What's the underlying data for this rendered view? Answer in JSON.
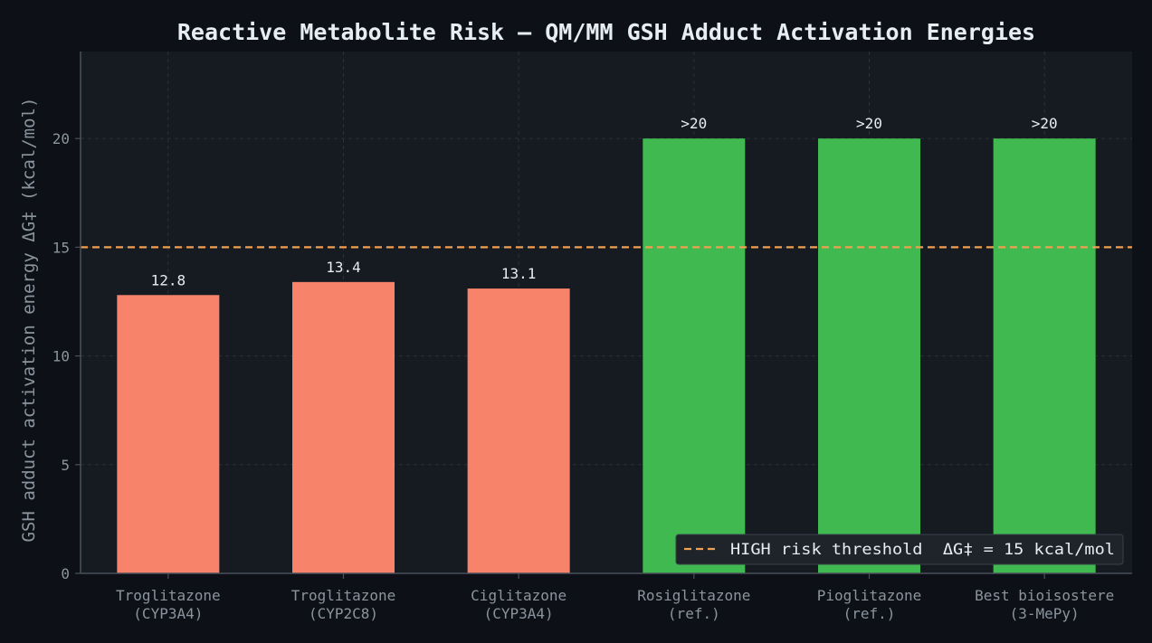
{
  "chart_data": {
    "type": "bar",
    "title": "Reactive Metabolite Risk — QM/MM GSH Adduct Activation Energies",
    "ylabel": "GSH adduct activation energy  ΔG‡ (kcal/mol)",
    "xlabel": "",
    "ylim": [
      0,
      24
    ],
    "yticks": [
      0,
      5,
      10,
      15,
      20
    ],
    "grid": true,
    "categories": [
      [
        "Troglitazone",
        "(CYP3A4)"
      ],
      [
        "Troglitazone",
        "(CYP2C8)"
      ],
      [
        "Ciglitazone",
        "(CYP3A4)"
      ],
      [
        "Rosiglitazone",
        "(ref.)"
      ],
      [
        "Pioglitazone",
        "(ref.)"
      ],
      [
        "Best bioisostere",
        "(3-MePy)"
      ]
    ],
    "values": [
      12.8,
      13.4,
      13.1,
      20,
      20,
      20
    ],
    "value_labels": [
      "12.8",
      "13.4",
      "13.1",
      ">20",
      ">20",
      ">20"
    ],
    "bar_colors": [
      "#f6836a",
      "#f6836a",
      "#f6836a",
      "#3fb950",
      "#3fb950",
      "#3fb950"
    ],
    "threshold": {
      "value": 15,
      "label": "HIGH risk threshold  ΔG‡ = 15 kcal/mol",
      "color": "#f0a050"
    },
    "legend_position": "lower-right"
  },
  "colors": {
    "figure_bg": "#0d1117",
    "axes_bg": "#161b22",
    "grid": "#2b313a",
    "axis": "#4a515b",
    "tick_text": "#8b949e",
    "title_text": "#e6edf3",
    "label_text": "#e6edf3"
  }
}
